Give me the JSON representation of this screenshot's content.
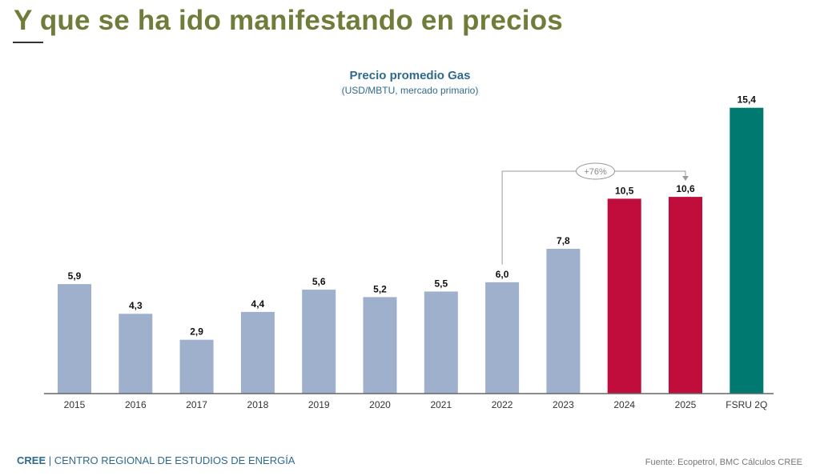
{
  "page": {
    "title": "Y que se ha ido manifestando en precios",
    "footer_brand": "CREE",
    "footer_org": "| CENTRO REGIONAL DE ESTUDIOS DE ENERGÍA",
    "source": "Fuente: Ecopetrol, BMC Cálculos CREE"
  },
  "colors": {
    "historic": "#9fb0cd",
    "projection": "#c00d3c",
    "fsru": "#007a70",
    "title": "#6f7c3a",
    "chart_title": "#2e6a8e"
  },
  "chart_data": {
    "type": "bar",
    "title": "Precio promedio Gas",
    "subtitle": "(USD/MBTU, mercado primario)",
    "xlabel": "",
    "ylabel": "",
    "ylim": [
      0,
      16
    ],
    "grid": false,
    "categories": [
      "2015",
      "2016",
      "2017",
      "2018",
      "2019",
      "2020",
      "2021",
      "2022",
      "2023",
      "2024",
      "2025",
      "FSRU 2Q"
    ],
    "values": [
      5.9,
      4.3,
      2.9,
      4.4,
      5.6,
      5.2,
      5.5,
      6.0,
      7.8,
      10.5,
      10.6,
      15.4
    ],
    "labels": [
      "5,9",
      "4,3",
      "2,9",
      "4,4",
      "5,6",
      "5,2",
      "5,5",
      "6,0",
      "7,8",
      "10,5",
      "10,6",
      "15,4"
    ],
    "bar_groups": [
      "historic",
      "historic",
      "historic",
      "historic",
      "historic",
      "historic",
      "historic",
      "historic",
      "historic",
      "projection",
      "projection",
      "fsru"
    ],
    "annotation": {
      "text": "+76%",
      "from_category": "2022",
      "to_category": "2025"
    }
  }
}
